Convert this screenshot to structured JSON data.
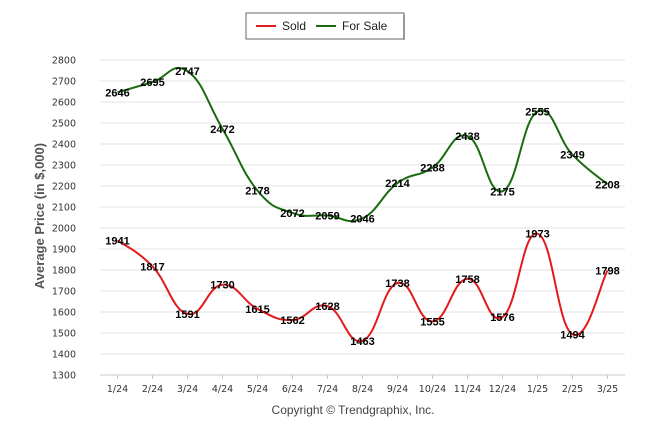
{
  "chart_data": {
    "type": "line",
    "ylabel": "Average Price (in $,000)",
    "categories": [
      "1/24",
      "2/24",
      "3/24",
      "4/24",
      "5/24",
      "6/24",
      "7/24",
      "8/24",
      "9/24",
      "10/24",
      "11/24",
      "12/24",
      "1/25",
      "2/25",
      "3/25"
    ],
    "ylim": [
      1300,
      2800
    ],
    "yticks": [
      1300,
      1400,
      1500,
      1600,
      1700,
      1800,
      1900,
      2000,
      2100,
      2200,
      2300,
      2400,
      2500,
      2600,
      2700,
      2800
    ],
    "grid": true,
    "legend_position": "top-center",
    "series": [
      {
        "name": "Sold",
        "color": "#e31a1c",
        "values": [
          1941,
          1817,
          1591,
          1730,
          1615,
          1562,
          1628,
          1463,
          1738,
          1555,
          1758,
          1576,
          1973,
          1494,
          1798
        ]
      },
      {
        "name": "For Sale",
        "color": "#1a6b10",
        "values": [
          2646,
          2695,
          2747,
          2472,
          2178,
          2072,
          2059,
          2046,
          2214,
          2288,
          2438,
          2175,
          2555,
          2349,
          2208
        ]
      }
    ]
  },
  "footer": "Copyright © Trendgraphix, Inc."
}
